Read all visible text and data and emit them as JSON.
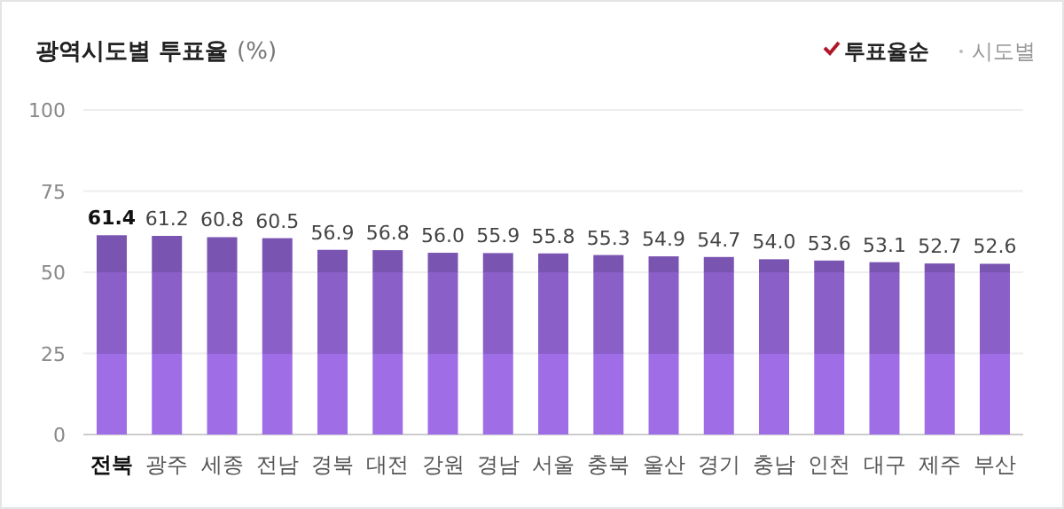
{
  "chart_data": {
    "type": "bar",
    "title": "광역시도별 투표율",
    "subtitle": "(%)",
    "categories": [
      "전북",
      "광주",
      "세종",
      "전남",
      "경북",
      "대전",
      "강원",
      "경남",
      "서울",
      "충북",
      "울산",
      "경기",
      "충남",
      "인천",
      "대구",
      "제주",
      "부산"
    ],
    "values": [
      61.4,
      61.2,
      60.8,
      60.5,
      56.9,
      56.8,
      56.0,
      55.9,
      55.8,
      55.3,
      54.9,
      54.7,
      54.0,
      53.6,
      53.1,
      52.7,
      52.6
    ],
    "color": "#8a5fc8",
    "ylim": [
      0,
      100
    ],
    "yticks": [
      0,
      25,
      50,
      75,
      100
    ],
    "grid": "y",
    "value_labels": [
      "61.4",
      "61.2",
      "60.8",
      "60.5",
      "56.9",
      "56.8",
      "56.0",
      "55.9",
      "55.8",
      "55.3",
      "54.9",
      "54.7",
      "54.0",
      "53.6",
      "53.1",
      "52.7",
      "52.6"
    ],
    "annotations": [
      "투표율순",
      "시도별"
    ]
  }
}
